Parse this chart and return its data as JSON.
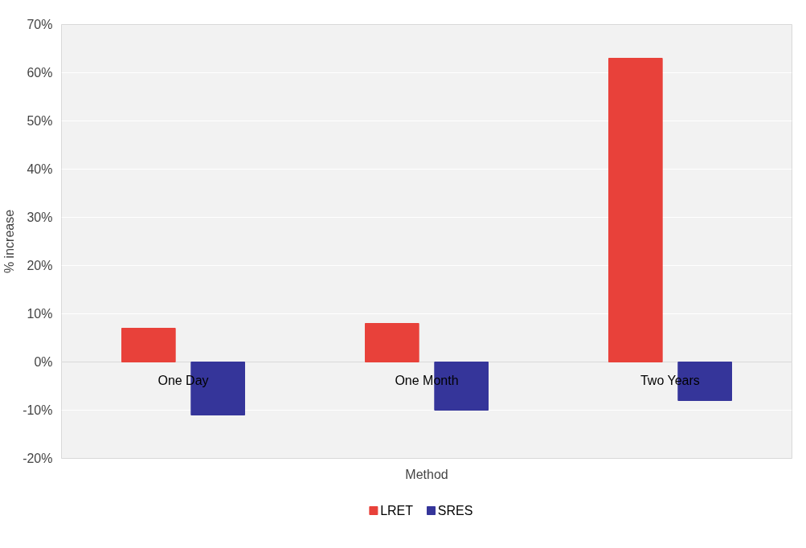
{
  "chart_data": {
    "type": "bar",
    "xlabel": "Method",
    "ylabel": "% increase",
    "categories": [
      "One Day",
      "One Month",
      "Two Years"
    ],
    "series": [
      {
        "name": "LRET",
        "color": "#e8413a",
        "values": [
          7,
          8,
          63
        ]
      },
      {
        "name": "SRES",
        "color": "#35359a",
        "values": [
          -11,
          -10,
          -8
        ]
      }
    ],
    "ylim": [
      -20,
      70
    ],
    "yticks": [
      {
        "value": -20,
        "label": "-20%"
      },
      {
        "value": -10,
        "label": "-10%"
      },
      {
        "value": 0,
        "label": "0%"
      },
      {
        "value": 10,
        "label": "10%"
      },
      {
        "value": 20,
        "label": "20%"
      },
      {
        "value": 30,
        "label": "30%"
      },
      {
        "value": 40,
        "label": "40%"
      },
      {
        "value": 50,
        "label": "50%"
      },
      {
        "value": 60,
        "label": "60%"
      },
      {
        "value": 70,
        "label": "70%"
      }
    ],
    "grid": "y",
    "legend": "bottom"
  }
}
